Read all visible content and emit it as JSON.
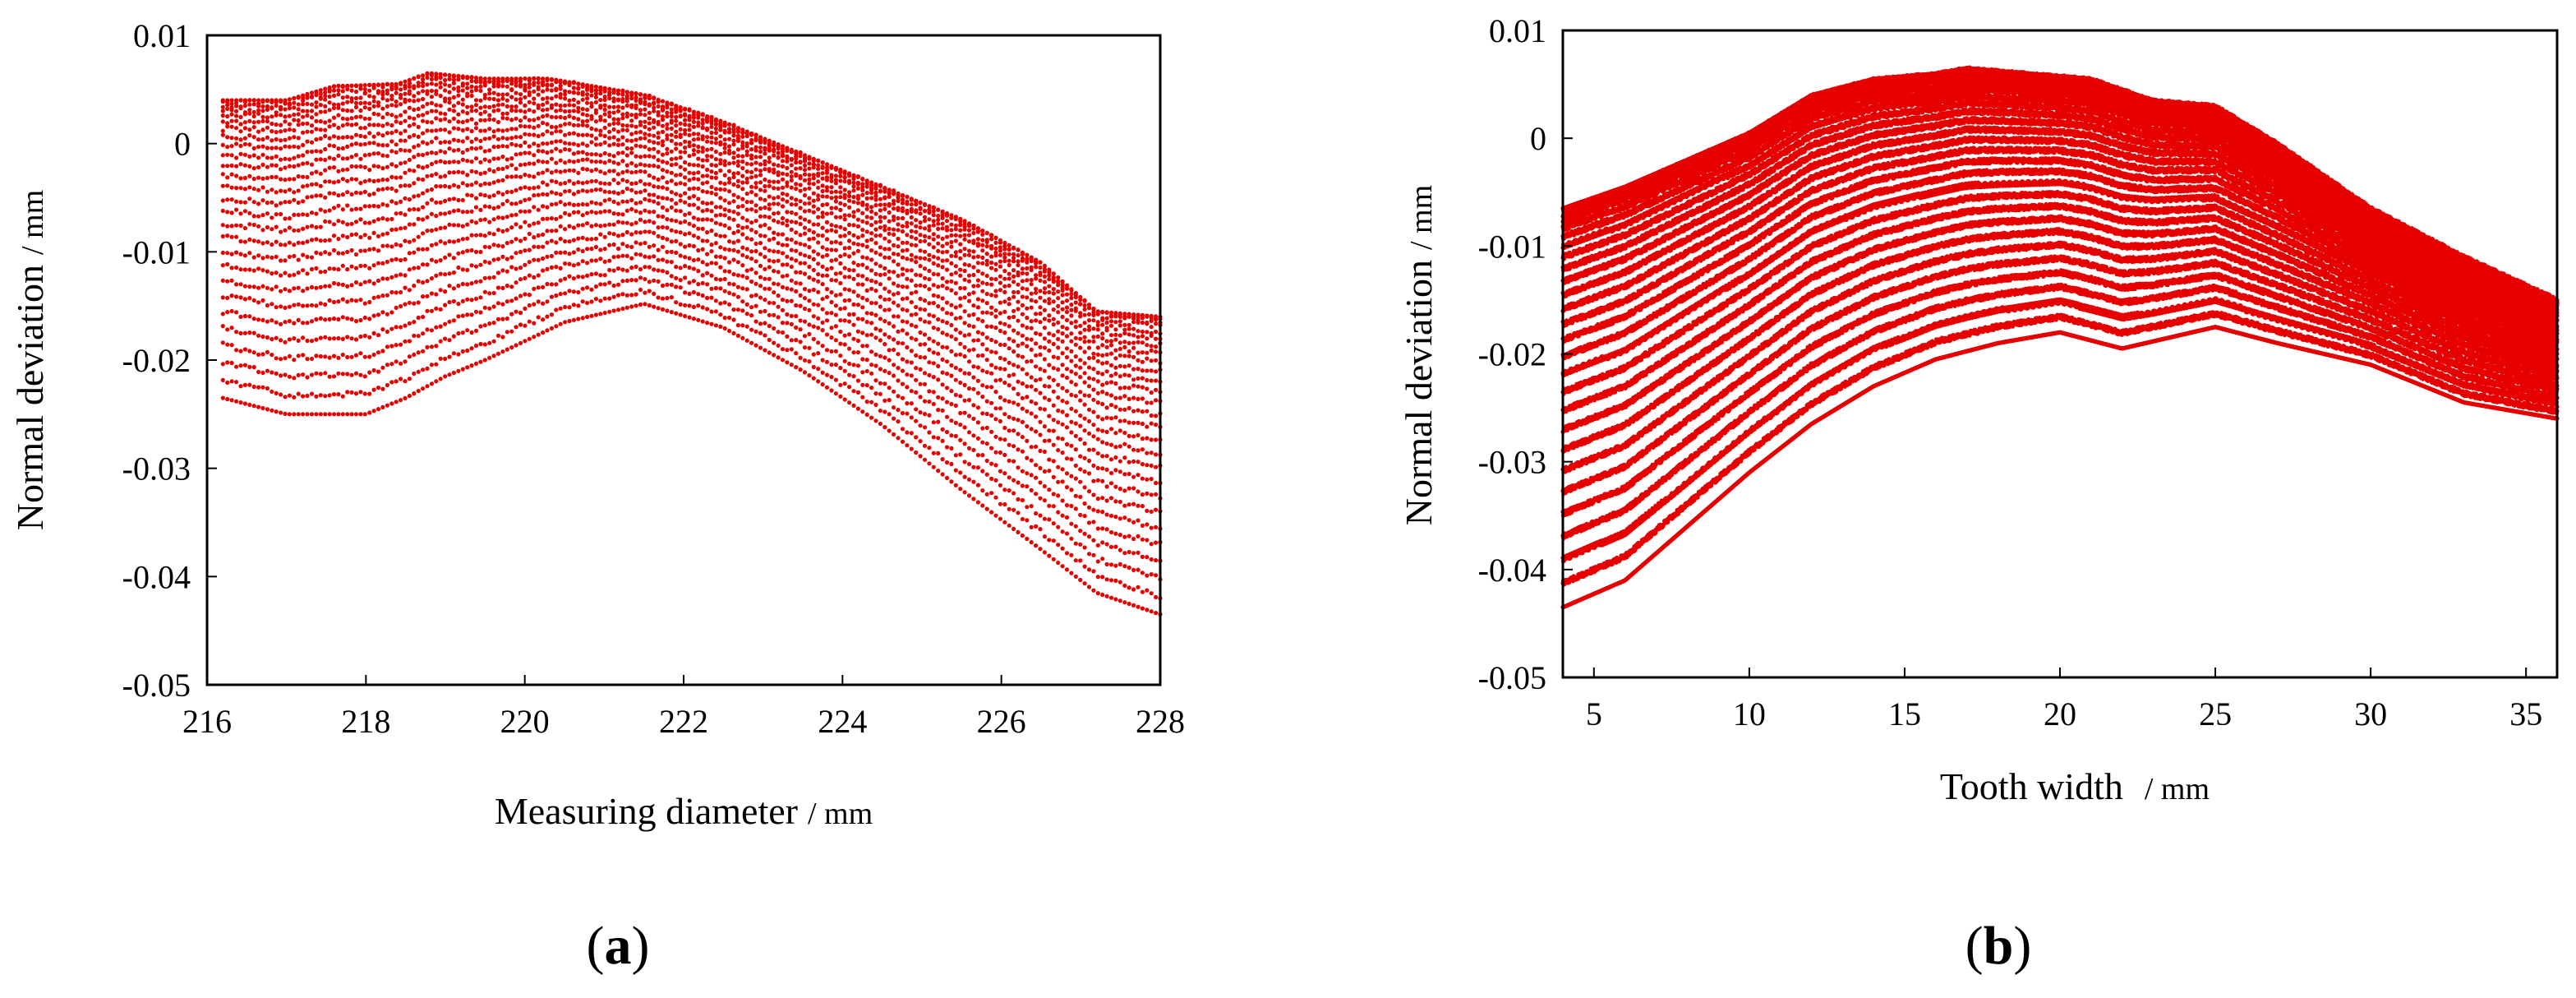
{
  "chart_data": [
    {
      "type": "scatter",
      "panel_label": "a",
      "title": "",
      "xlabel": "Measuring diameter",
      "xunit": "/ mm",
      "ylabel": "Normal deviation",
      "yunit": "/ mm",
      "xlim": [
        216,
        228
      ],
      "ylim": [
        -0.05,
        0.01
      ],
      "xticks": [
        216,
        218,
        220,
        222,
        224,
        226,
        228
      ],
      "xtick_labels": [
        "216",
        "218",
        "220",
        "222",
        "224",
        "226",
        "228"
      ],
      "yticks": [
        0.01,
        0,
        -0.01,
        -0.02,
        -0.03,
        -0.04,
        -0.05
      ],
      "ytick_labels": [
        "0.01",
        "0",
        "-0.01",
        "-0.02",
        "-0.03",
        "-0.04",
        "-0.05"
      ],
      "marker_color": "#e60000",
      "series": [
        {
          "name": "upper envelope",
          "x": [
            216.2,
            217,
            217.6,
            218.4,
            218.8,
            219.5,
            220.3,
            221.5,
            222.5,
            223.5,
            224.5,
            225.5,
            226.5,
            227.2,
            228
          ],
          "y": [
            0.004,
            0.004,
            0.0053,
            0.0055,
            0.0065,
            0.006,
            0.006,
            0.0045,
            0.002,
            -0.001,
            -0.004,
            -0.007,
            -0.011,
            -0.0155,
            -0.016
          ]
        },
        {
          "name": "lower envelope",
          "x": [
            216.2,
            217,
            218,
            218.5,
            219,
            219.5,
            220.5,
            221.5,
            222.5,
            223.5,
            224.5,
            225.5,
            226.5,
            227.2,
            228
          ],
          "y": [
            -0.0235,
            -0.025,
            -0.025,
            -0.0235,
            -0.0215,
            -0.02,
            -0.0165,
            -0.0148,
            -0.017,
            -0.021,
            -0.026,
            -0.032,
            -0.0375,
            -0.0415,
            -0.0435
          ]
        }
      ]
    },
    {
      "type": "scatter",
      "panel_label": "b",
      "title": "",
      "xlabel": "Tooth width",
      "xunit": "/ mm",
      "ylabel": "Normal deviation",
      "yunit": "/ mm",
      "xlim": [
        4,
        36
      ],
      "ylim": [
        -0.05,
        0.01
      ],
      "xticks": [
        5,
        10,
        15,
        20,
        25,
        30,
        35
      ],
      "xtick_labels": [
        "5",
        "10",
        "15",
        "20",
        "25",
        "30",
        "35"
      ],
      "yticks": [
        0.01,
        0,
        -0.01,
        -0.02,
        -0.03,
        -0.04,
        -0.05
      ],
      "ytick_labels": [
        "0.01",
        "0",
        "-0.01",
        "-0.02",
        "-0.03",
        "-0.04",
        "-0.05"
      ],
      "marker_color": "#e60000",
      "series": [
        {
          "name": "upper envelope",
          "x": [
            4,
            6,
            8,
            10,
            12,
            14,
            16,
            17,
            19,
            21,
            23,
            25,
            27,
            30,
            33,
            36
          ],
          "y": [
            -0.0065,
            -0.0045,
            -0.002,
            0.0005,
            0.004,
            0.0055,
            0.006,
            0.0065,
            0.006,
            0.0055,
            0.0035,
            0.003,
            -0.0005,
            -0.0065,
            -0.011,
            -0.015
          ]
        },
        {
          "name": "lower envelope",
          "x": [
            4,
            6,
            8,
            10,
            12,
            14,
            16,
            18,
            20,
            22,
            25,
            27,
            30,
            33,
            36
          ],
          "y": [
            -0.0435,
            -0.041,
            -0.036,
            -0.031,
            -0.0265,
            -0.023,
            -0.0205,
            -0.019,
            -0.018,
            -0.0195,
            -0.0175,
            -0.019,
            -0.021,
            -0.0245,
            -0.026
          ]
        }
      ]
    }
  ]
}
